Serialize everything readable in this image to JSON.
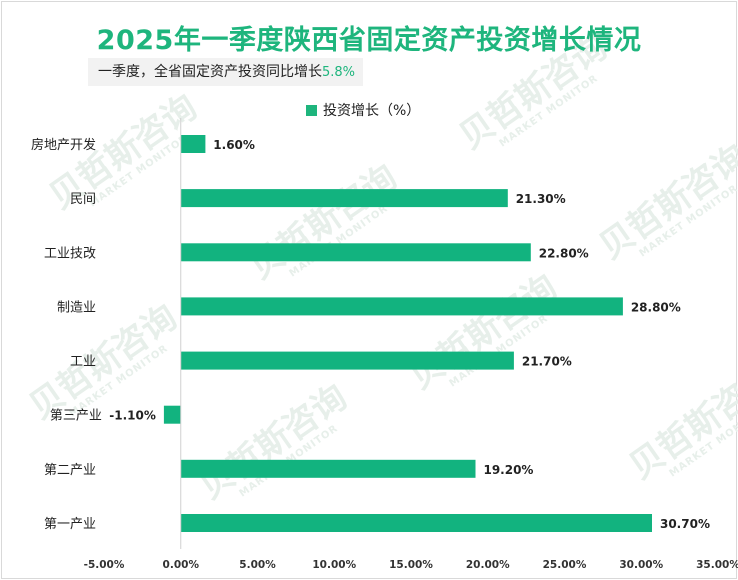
{
  "title": "2025年一季度陕西省固定资产投资增长情况",
  "subtitle": {
    "text": "一季度，全省固定资产投资同比增长",
    "value": "5.8%"
  },
  "colors": {
    "accent": "#1eb57d",
    "bar": "#12b37f"
  },
  "watermark": {
    "text": "贝哲斯咨询",
    "sub": "MARKET MONITOR"
  },
  "chart_data": {
    "type": "bar",
    "orientation": "horizontal",
    "categories": [
      "房地产开发",
      "民间",
      "工业技改",
      "制造业",
      "工业",
      "第三产业",
      "第二产业",
      "第一产业"
    ],
    "series": [
      {
        "name": "投资增长（%）",
        "values": [
          1.6,
          21.3,
          22.8,
          28.8,
          21.7,
          -1.1,
          19.2,
          30.7
        ]
      }
    ],
    "value_labels": [
      "1.60%",
      "21.30%",
      "22.80%",
      "28.80%",
      "21.70%",
      "-1.10%",
      "19.20%",
      "30.70%"
    ],
    "xlim": [
      -5,
      35
    ],
    "xticks": [
      -5,
      0,
      5,
      10,
      15,
      20,
      25,
      30,
      35
    ],
    "xtick_labels": [
      "-5.00%",
      "0.00%",
      "5.00%",
      "10.00%",
      "15.00%",
      "20.00%",
      "25.00%",
      "30.00%",
      "35.00%"
    ],
    "grid": false,
    "legend_position": "top-center"
  }
}
